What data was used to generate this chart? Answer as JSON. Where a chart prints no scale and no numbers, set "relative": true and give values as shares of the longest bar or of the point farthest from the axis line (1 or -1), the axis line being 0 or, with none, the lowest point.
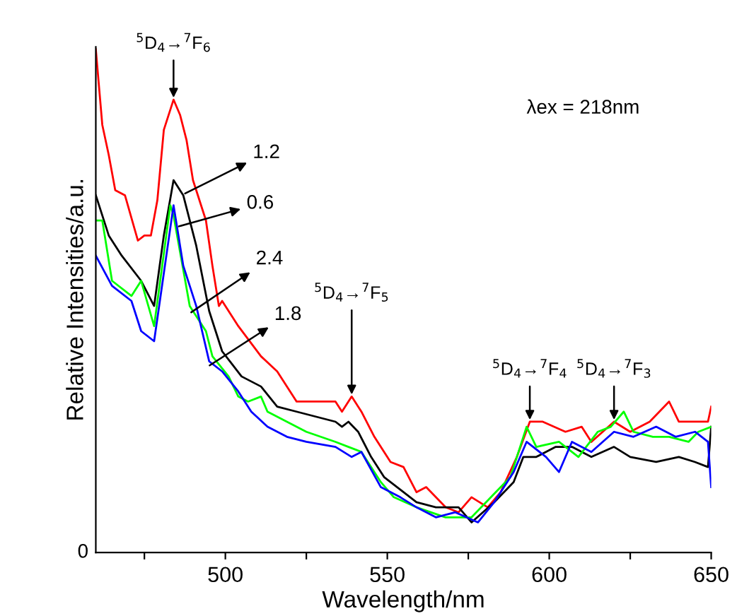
{
  "chart_data": {
    "type": "line",
    "relative": true,
    "xlabel": "Wavelength/nm",
    "ylabel": "Relative Intensities/a.u.",
    "xlim": [
      460,
      650
    ],
    "xticks": [
      {
        "value": 475,
        "label": null
      },
      500,
      {
        "value": 525,
        "label": null
      },
      550,
      {
        "value": 575,
        "label": null
      },
      600,
      {
        "value": 625,
        "label": null
      },
      650
    ],
    "grid": false,
    "legend": false,
    "marker": "none",
    "line_style": "solid",
    "series": [
      {
        "color": "#ff0000",
        "x": [
          460,
          462,
          464,
          466,
          469,
          473,
          475,
          477,
          479,
          481,
          484,
          486,
          488,
          490,
          494,
          496,
          498,
          499,
          504,
          511,
          516,
          522,
          534,
          536,
          539,
          542,
          546,
          551,
          555,
          559,
          562,
          568,
          572,
          576,
          581,
          585,
          590,
          594,
          598,
          605,
          610,
          613,
          620,
          625,
          631,
          637,
          640,
          645,
          649,
          650
        ],
        "values": [
          1.0,
          0.85,
          0.79,
          0.72,
          0.71,
          0.62,
          0.63,
          0.63,
          0.7,
          0.84,
          0.9,
          0.87,
          0.82,
          0.74,
          0.66,
          0.57,
          0.49,
          0.5,
          0.45,
          0.39,
          0.36,
          0.3,
          0.3,
          0.28,
          0.31,
          0.28,
          0.23,
          0.18,
          0.17,
          0.12,
          0.13,
          0.09,
          0.08,
          0.11,
          0.09,
          0.12,
          0.19,
          0.26,
          0.26,
          0.24,
          0.25,
          0.22,
          0.26,
          0.24,
          0.26,
          0.3,
          0.26,
          0.26,
          0.26,
          0.29
        ]
      },
      {
        "color": "#000000",
        "x": [
          460,
          464,
          468,
          474,
          478,
          481,
          484,
          487,
          491,
          495,
          499,
          505,
          511,
          516,
          522,
          534,
          536,
          538,
          541,
          545,
          549,
          555,
          559,
          565,
          572,
          576,
          583,
          589,
          592,
          596,
          602,
          607,
          613,
          620,
          625,
          633,
          640,
          645,
          649,
          650
        ],
        "values": [
          0.71,
          0.63,
          0.59,
          0.54,
          0.49,
          0.63,
          0.74,
          0.71,
          0.61,
          0.48,
          0.4,
          0.35,
          0.33,
          0.29,
          0.28,
          0.26,
          0.25,
          0.26,
          0.24,
          0.19,
          0.15,
          0.12,
          0.1,
          0.09,
          0.09,
          0.06,
          0.1,
          0.14,
          0.19,
          0.19,
          0.21,
          0.21,
          0.19,
          0.21,
          0.19,
          0.18,
          0.19,
          0.18,
          0.17,
          0.25
        ]
      },
      {
        "color": "#00ff00",
        "x": [
          460,
          462,
          465,
          471,
          474,
          478,
          483,
          484,
          489,
          494,
          496,
          501,
          504,
          507,
          511,
          513,
          519,
          525,
          534,
          538,
          542,
          548,
          552,
          559,
          568,
          576,
          582,
          588,
          593,
          596,
          603,
          609,
          615,
          619,
          623,
          626,
          632,
          637,
          643,
          646,
          650
        ],
        "values": [
          0.66,
          0.66,
          0.54,
          0.51,
          0.54,
          0.45,
          0.69,
          0.67,
          0.49,
          0.44,
          0.39,
          0.35,
          0.31,
          0.3,
          0.31,
          0.28,
          0.26,
          0.24,
          0.22,
          0.21,
          0.2,
          0.14,
          0.11,
          0.09,
          0.07,
          0.07,
          0.11,
          0.15,
          0.25,
          0.21,
          0.22,
          0.19,
          0.24,
          0.25,
          0.28,
          0.24,
          0.23,
          0.23,
          0.22,
          0.24,
          0.25
        ]
      },
      {
        "color": "#0000ff",
        "x": [
          460,
          465,
          471,
          474,
          478,
          484,
          487,
          491,
          495,
          499,
          504,
          508,
          513,
          519,
          525,
          534,
          539,
          542,
          548,
          554,
          559,
          565,
          571,
          578,
          583,
          589,
          593,
          599,
          603,
          607,
          613,
          620,
          626,
          633,
          639,
          645,
          649,
          650
        ],
        "values": [
          0.59,
          0.53,
          0.5,
          0.44,
          0.42,
          0.69,
          0.57,
          0.49,
          0.38,
          0.36,
          0.32,
          0.28,
          0.25,
          0.23,
          0.22,
          0.21,
          0.19,
          0.2,
          0.13,
          0.11,
          0.09,
          0.07,
          0.08,
          0.06,
          0.1,
          0.16,
          0.22,
          0.19,
          0.16,
          0.22,
          0.2,
          0.24,
          0.23,
          0.25,
          0.23,
          0.24,
          0.22,
          0.13
        ]
      }
    ],
    "annotations": [
      {
        "text": "$^{5}$D$_{4}$→$^{7}$F$_{6}$",
        "x": 484,
        "y": 0.9
      },
      {
        "text": "$^{5}$D$_{4}$→$^{7}$F$_{5}$",
        "x": 539,
        "y": 0.31
      },
      {
        "text": "$^{5}$D$_{4}$→$^{7}$F$_{4}$",
        "x": 594,
        "y": 0.26
      },
      {
        "text": "$^{5}$D$_{4}$→$^{7}$F$_{3}$",
        "x": 620,
        "y": 0.26
      },
      "λex = 218nm",
      "0",
      "1.2",
      "0.6",
      "2.4",
      "1.8"
    ]
  }
}
